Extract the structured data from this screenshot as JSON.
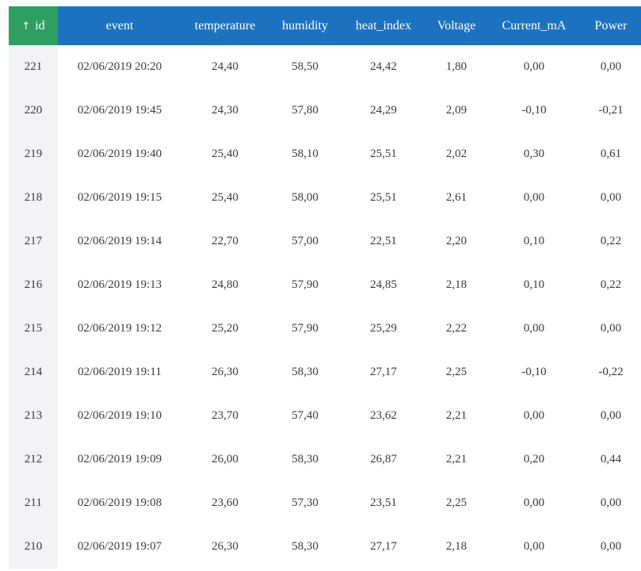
{
  "table": {
    "sorted_column_arrow": "↑",
    "columns": [
      "id",
      "event",
      "temperature",
      "humidity",
      "heat_index",
      "Voltage",
      "Current_mA",
      "Power"
    ],
    "rows": [
      [
        "221",
        "02/06/2019 20:20",
        "24,40",
        "58,50",
        "24,42",
        "1,80",
        "0,00",
        "0,00"
      ],
      [
        "220",
        "02/06/2019 19:45",
        "24,30",
        "57,80",
        "24,29",
        "2,09",
        "-0,10",
        "-0,21"
      ],
      [
        "219",
        "02/06/2019 19:40",
        "25,40",
        "58,10",
        "25,51",
        "2,02",
        "0,30",
        "0,61"
      ],
      [
        "218",
        "02/06/2019 19:15",
        "25,40",
        "58,00",
        "25,51",
        "2,61",
        "0,00",
        "0,00"
      ],
      [
        "217",
        "02/06/2019 19:14",
        "22,70",
        "57,00",
        "22,51",
        "2,20",
        "0,10",
        "0,22"
      ],
      [
        "216",
        "02/06/2019 19:13",
        "24,80",
        "57,90",
        "24,85",
        "2,18",
        "0,10",
        "0,22"
      ],
      [
        "215",
        "02/06/2019 19:12",
        "25,20",
        "57,90",
        "25,29",
        "2,22",
        "0,00",
        "0,00"
      ],
      [
        "214",
        "02/06/2019 19:11",
        "26,30",
        "58,30",
        "27,17",
        "2,25",
        "-0,10",
        "-0,22"
      ],
      [
        "213",
        "02/06/2019 19:10",
        "23,70",
        "57,40",
        "23,62",
        "2,21",
        "0,00",
        "0,00"
      ],
      [
        "212",
        "02/06/2019 19:09",
        "26,00",
        "58,30",
        "26,87",
        "2,21",
        "0,20",
        "0,44"
      ],
      [
        "211",
        "02/06/2019 19:08",
        "23,60",
        "57,30",
        "23,51",
        "2,25",
        "0,00",
        "0,00"
      ],
      [
        "210",
        "02/06/2019 19:07",
        "26,30",
        "58,30",
        "27,17",
        "2,18",
        "0,00",
        "0,00"
      ]
    ]
  },
  "colors": {
    "header_bg": "#1d72bf",
    "sorted_header_bg": "#2e9e63",
    "id_column_bg": "#f1f3f6",
    "cell_text": "#3a3a3a"
  }
}
